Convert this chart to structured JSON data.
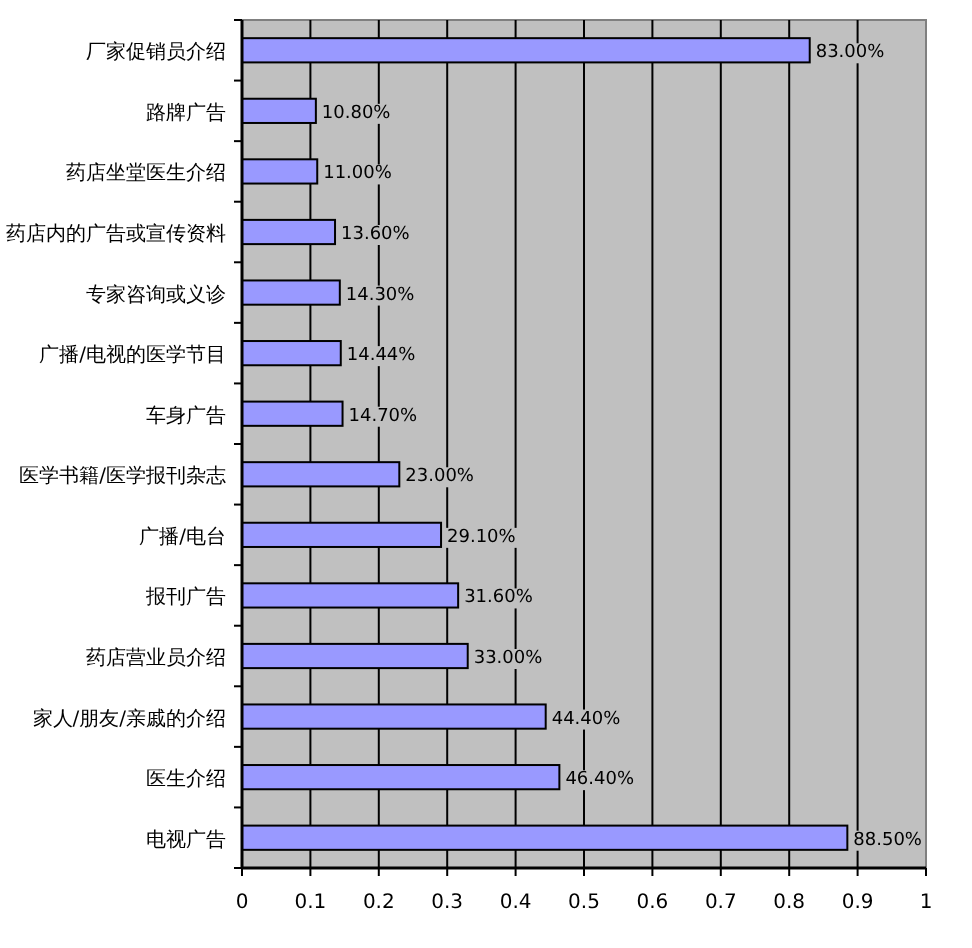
{
  "chart_data": {
    "type": "bar",
    "orientation": "horizontal",
    "categories": [
      "厂家促销员介绍",
      "路牌广告",
      "药店坐堂医生介绍",
      "药店内的广告或宣传资料",
      "专家咨询或义诊",
      "广播/电视的医学节目",
      "车身广告",
      "医学书籍/医学报刊杂志",
      "广播/电台",
      "报刊广告",
      "药店营业员介绍",
      "家人/朋友/亲戚的介绍",
      "医生介绍",
      "电视广告"
    ],
    "values": [
      0.83,
      0.108,
      0.11,
      0.136,
      0.143,
      0.1444,
      0.147,
      0.23,
      0.291,
      0.316,
      0.33,
      0.444,
      0.464,
      0.885
    ],
    "value_labels": [
      "83.00%",
      "10.80%",
      "11.00%",
      "13.60%",
      "14.30%",
      "14.44%",
      "14.70%",
      "23.00%",
      "29.10%",
      "31.60%",
      "33.00%",
      "44.40%",
      "46.40%",
      "88.50%"
    ],
    "color": "#9999ff",
    "xlim": [
      0,
      1
    ],
    "xticks": [
      0,
      0.1,
      0.2,
      0.3,
      0.4,
      0.5,
      0.6,
      0.7,
      0.8,
      0.9,
      1
    ],
    "grid": "x"
  }
}
